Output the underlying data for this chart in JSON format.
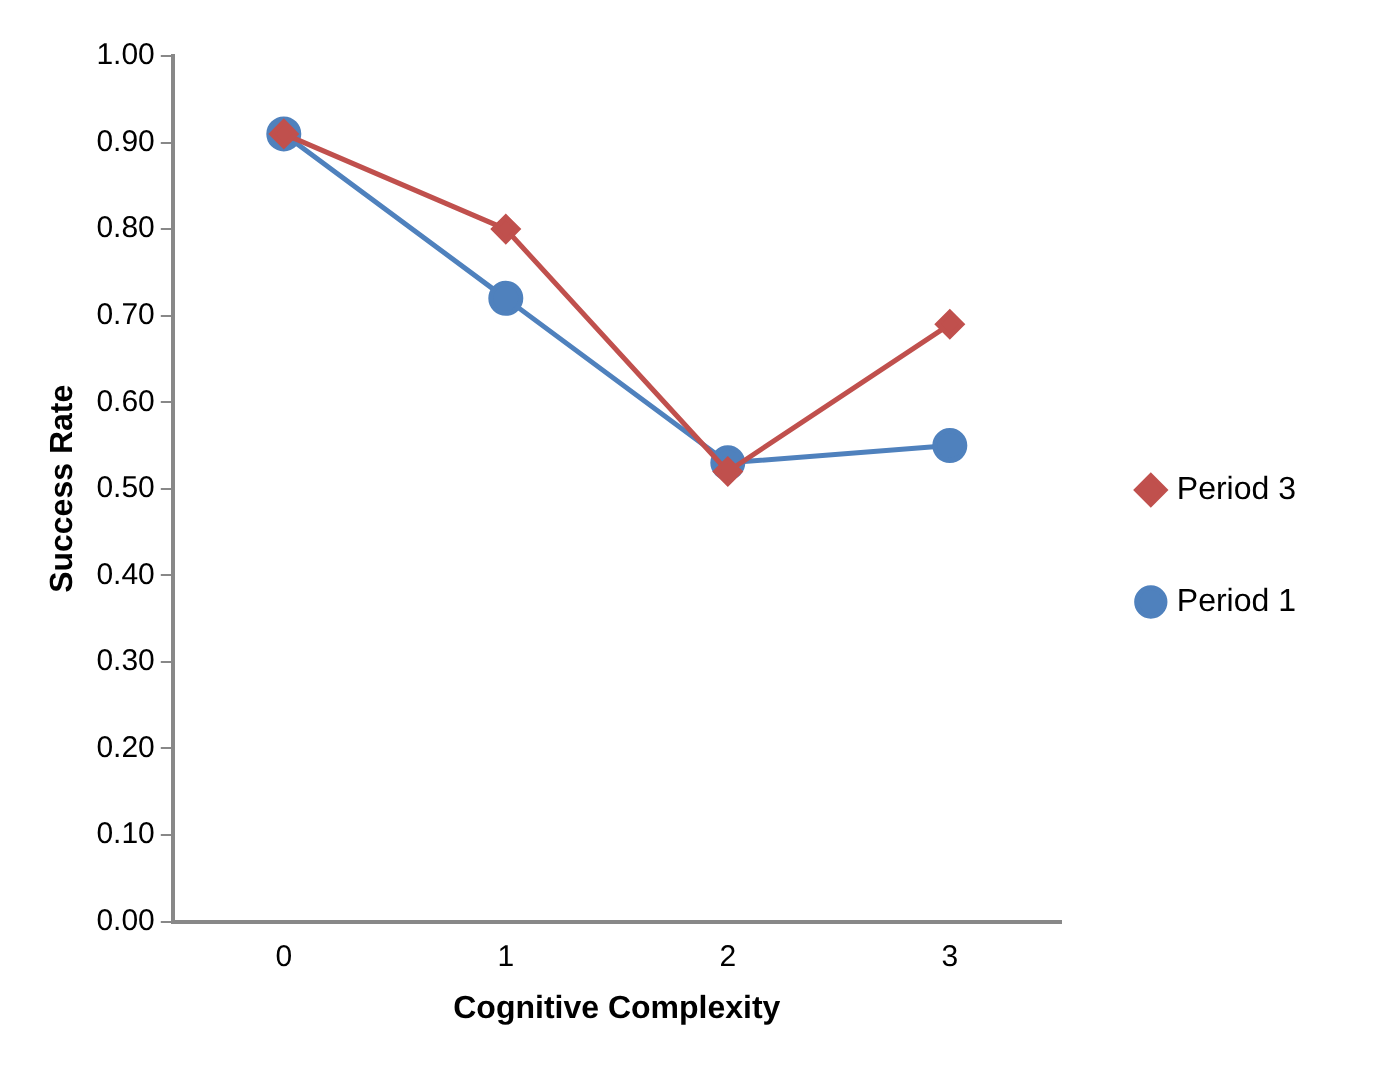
{
  "chart_data": {
    "type": "line",
    "xlabel": "Cognitive Complexity",
    "ylabel": "Success Rate",
    "categories": [
      "0",
      "1",
      "2",
      "3"
    ],
    "series": [
      {
        "name": "Period 1",
        "color": "#4f81bd",
        "marker": "circle",
        "values": [
          0.91,
          0.72,
          0.53,
          0.55
        ]
      },
      {
        "name": "Period 3",
        "color": "#c0504d",
        "marker": "diamond",
        "values": [
          0.91,
          0.8,
          0.52,
          0.69
        ]
      }
    ],
    "ylim": [
      0,
      1
    ],
    "yticks": [
      {
        "value": 0,
        "label": "0.00"
      },
      {
        "value": 0.1,
        "label": "0.10"
      },
      {
        "value": 0.2,
        "label": "0.20"
      },
      {
        "value": 0.3,
        "label": "0.30"
      },
      {
        "value": 0.4,
        "label": "0.40"
      },
      {
        "value": 0.5,
        "label": "0.50"
      },
      {
        "value": 0.6,
        "label": "0.60"
      },
      {
        "value": 0.7,
        "label": "0.70"
      },
      {
        "value": 0.8,
        "label": "0.80"
      },
      {
        "value": 0.9,
        "label": "0.90"
      },
      {
        "value": 1,
        "label": "1.00"
      }
    ],
    "grid": false,
    "legend": "right"
  }
}
